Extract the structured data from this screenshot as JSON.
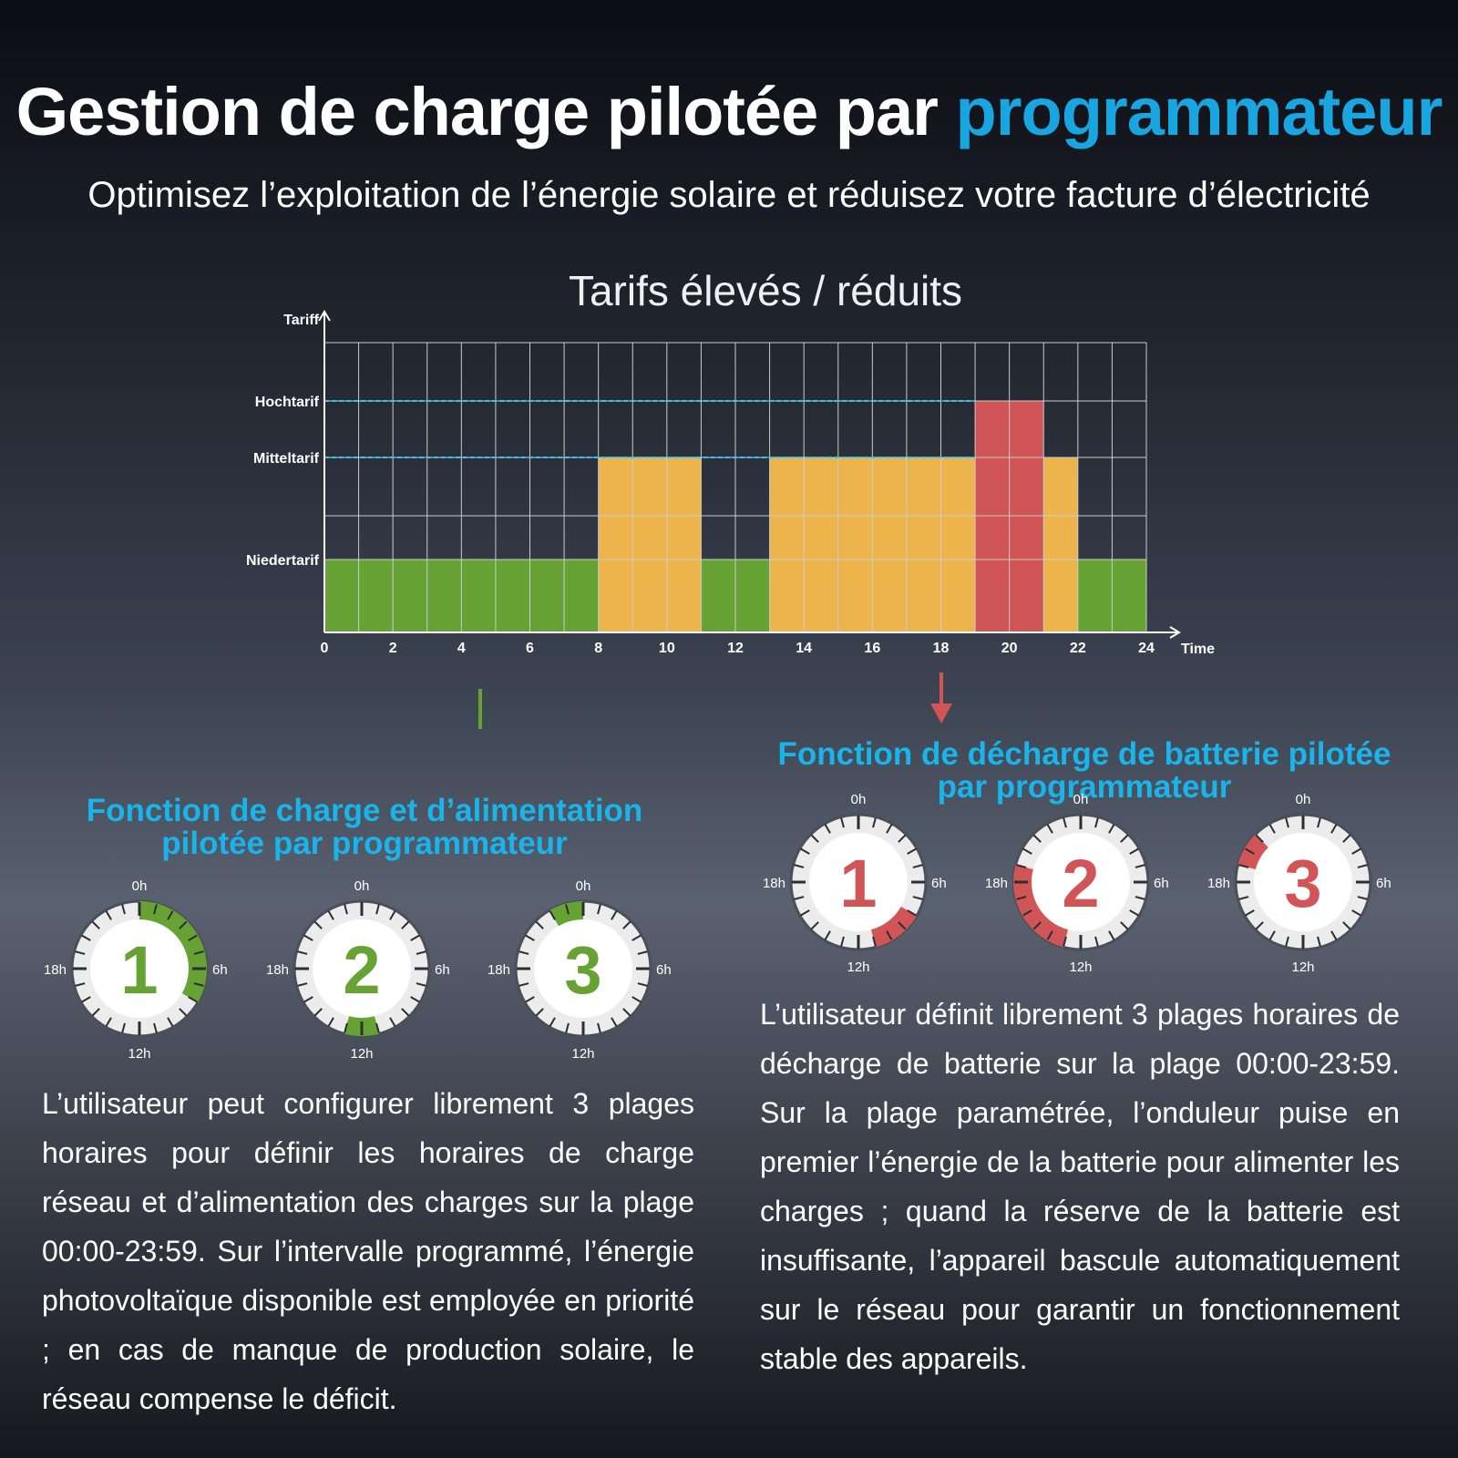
{
  "header": {
    "title_main": "Gestion de charge pilotée par ",
    "title_highlight": "programmateur",
    "subtitle": "Optimisez l’exploitation de l’énergie solaire et réduisez votre facture d’électricité"
  },
  "colors": {
    "accent": "#19a6e0",
    "low": "#67a334",
    "mid": "#ecb44a",
    "high": "#d15456",
    "grid": "#c8cbd0"
  },
  "chart_data": {
    "type": "bar",
    "title": "Tarifs élevés / réduits",
    "ylabel": "Tariff",
    "xlabel": "Time",
    "xlim": [
      0,
      24
    ],
    "x_ticks": [
      0,
      2,
      4,
      6,
      8,
      10,
      12,
      14,
      16,
      18,
      20,
      22,
      24
    ],
    "levels": [
      {
        "name": "Niedertarif",
        "value": 1
      },
      {
        "name": "Mitteltarif",
        "value": 2
      },
      {
        "name": "Hochtarif",
        "value": 3
      }
    ],
    "ylim": [
      0,
      4
    ],
    "grid": true,
    "reference_lines": [
      "Hochtarif",
      "Mitteltarif"
    ],
    "segments": [
      {
        "start": 0,
        "end": 8,
        "tariff": "Niedertarif"
      },
      {
        "start": 8,
        "end": 11,
        "tariff": "Mitteltarif"
      },
      {
        "start": 11,
        "end": 13,
        "tariff": "Niedertarif"
      },
      {
        "start": 13,
        "end": 19,
        "tariff": "Mitteltarif"
      },
      {
        "start": 19,
        "end": 21,
        "tariff": "Hochtarif"
      },
      {
        "start": 21,
        "end": 22,
        "tariff": "Mitteltarif"
      },
      {
        "start": 22,
        "end": 24,
        "tariff": "Niedertarif"
      }
    ]
  },
  "dial_labels": {
    "top": "0h",
    "right": "6h",
    "bottom": "12h",
    "left": "18h"
  },
  "charge_section": {
    "title_line1": "Fonction de charge et d’alimentation",
    "title_line2": "pilotée par programmateur",
    "dials": [
      {
        "number": "1",
        "arc_start_h": 0,
        "arc_end_h": 8
      },
      {
        "number": "2",
        "arc_start_h": 11,
        "arc_end_h": 13
      },
      {
        "number": "3",
        "arc_start_h": 22,
        "arc_end_h": 24
      }
    ],
    "text": "L’utilisateur peut configurer librement 3 plages horaires pour définir les horaires de charge réseau et d’alimentation des charges sur la plage 00:00-23:59. Sur l’intervalle programmé, l’énergie photovoltaïque disponible est employée en priorité ; en cas de manque de production solaire, le réseau compense le déficit."
  },
  "discharge_section": {
    "title_line1": "Fonction de décharge de batterie pilotée",
    "title_line2": "par programmateur",
    "dials": [
      {
        "number": "1",
        "arc_start_h": 8,
        "arc_end_h": 11
      },
      {
        "number": "2",
        "arc_start_h": 13,
        "arc_end_h": 19
      },
      {
        "number": "3",
        "arc_start_h": 19,
        "arc_end_h": 21
      }
    ],
    "text": "L’utilisateur définit librement 3 plages horaires de décharge de batterie sur la plage 00:00-23:59. Sur la plage paramétrée, l’onduleur puise en premier l’énergie de la batterie pour alimenter les charges ; quand la réserve de la batterie est insuffisante, l’appareil bascule automatiquement sur le réseau pour garantir un fonctionnement stable des appareils."
  }
}
